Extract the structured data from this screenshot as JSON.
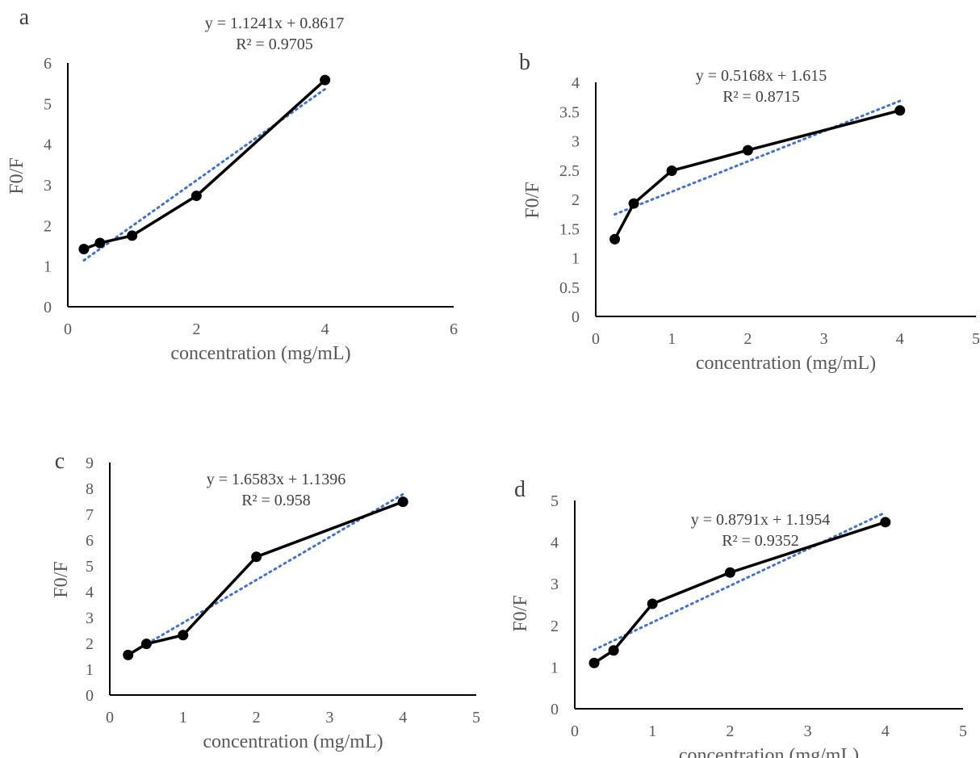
{
  "chart_data": [
    {
      "panel_label": "a",
      "type": "line",
      "xlabel": "concentration (mg/mL)",
      "ylabel": "F0/F",
      "xlim": [
        0,
        6
      ],
      "ylim": [
        0,
        6
      ],
      "xticks": [
        "0",
        "2",
        "4",
        "6"
      ],
      "yticks": [
        "0",
        "1",
        "2",
        "3",
        "4",
        "5",
        "6"
      ],
      "x": [
        0.25,
        0.5,
        1,
        2,
        4
      ],
      "series": [
        {
          "values": [
            1.42,
            1.57,
            1.75,
            2.73,
            5.58
          ]
        }
      ],
      "trendline": {
        "slope": 1.1241,
        "intercept": 0.8617,
        "style": "dotted",
        "color": "#4472c4"
      },
      "equation": "y = 1.1241x + 0.8617",
      "r2": "R² = 0.9705",
      "grid": false,
      "line_color": "#000000"
    },
    {
      "panel_label": "b",
      "type": "line",
      "xlabel": "concentration (mg/mL)",
      "ylabel": "F0/F",
      "xlim": [
        0,
        5
      ],
      "ylim": [
        0,
        4
      ],
      "xticks": [
        "0",
        "1",
        "2",
        "3",
        "4",
        "5"
      ],
      "yticks": [
        "0",
        "0.5",
        "1",
        "1.5",
        "2",
        "2.5",
        "3",
        "3.5",
        "4"
      ],
      "x": [
        0.25,
        0.5,
        1,
        2,
        4
      ],
      "series": [
        {
          "values": [
            1.32,
            1.93,
            2.49,
            2.84,
            3.52
          ]
        }
      ],
      "trendline": {
        "slope": 0.5168,
        "intercept": 1.615,
        "style": "dotted",
        "color": "#4472c4"
      },
      "equation": "y = 0.5168x + 1.615",
      "r2": "R² = 0.8715",
      "grid": false,
      "line_color": "#000000"
    },
    {
      "panel_label": "c",
      "type": "line",
      "xlabel": "concentration (mg/mL)",
      "ylabel": "F0/F",
      "xlim": [
        0,
        5
      ],
      "ylim": [
        0,
        9
      ],
      "xticks": [
        "0",
        "1",
        "2",
        "3",
        "4",
        "5"
      ],
      "yticks": [
        "0",
        "1",
        "2",
        "3",
        "4",
        "5",
        "6",
        "7",
        "8",
        "9"
      ],
      "x": [
        0.25,
        0.5,
        1,
        2,
        4
      ],
      "series": [
        {
          "values": [
            1.55,
            1.98,
            2.32,
            5.35,
            7.48
          ]
        }
      ],
      "trendline": {
        "slope": 1.6583,
        "intercept": 1.1396,
        "style": "dotted",
        "color": "#4472c4"
      },
      "equation": "y = 1.6583x + 1.1396",
      "r2": "R² = 0.958",
      "grid": false,
      "line_color": "#000000"
    },
    {
      "panel_label": "d",
      "type": "line",
      "xlabel": "concentration (mg/mL)",
      "ylabel": "F0/F",
      "xlim": [
        0,
        5
      ],
      "ylim": [
        0,
        5
      ],
      "xticks": [
        "0",
        "1",
        "2",
        "3",
        "4",
        "5"
      ],
      "yticks": [
        "0",
        "1",
        "2",
        "3",
        "4",
        "5"
      ],
      "x": [
        0.25,
        0.5,
        1,
        2,
        4
      ],
      "series": [
        {
          "values": [
            1.1,
            1.4,
            2.52,
            3.27,
            4.48
          ]
        }
      ],
      "trendline": {
        "slope": 0.8791,
        "intercept": 1.1954,
        "style": "dotted",
        "color": "#4472c4"
      },
      "equation": "y = 0.8791x + 1.1954",
      "r2": "R² = 0.9352",
      "grid": false,
      "line_color": "#000000"
    }
  ]
}
